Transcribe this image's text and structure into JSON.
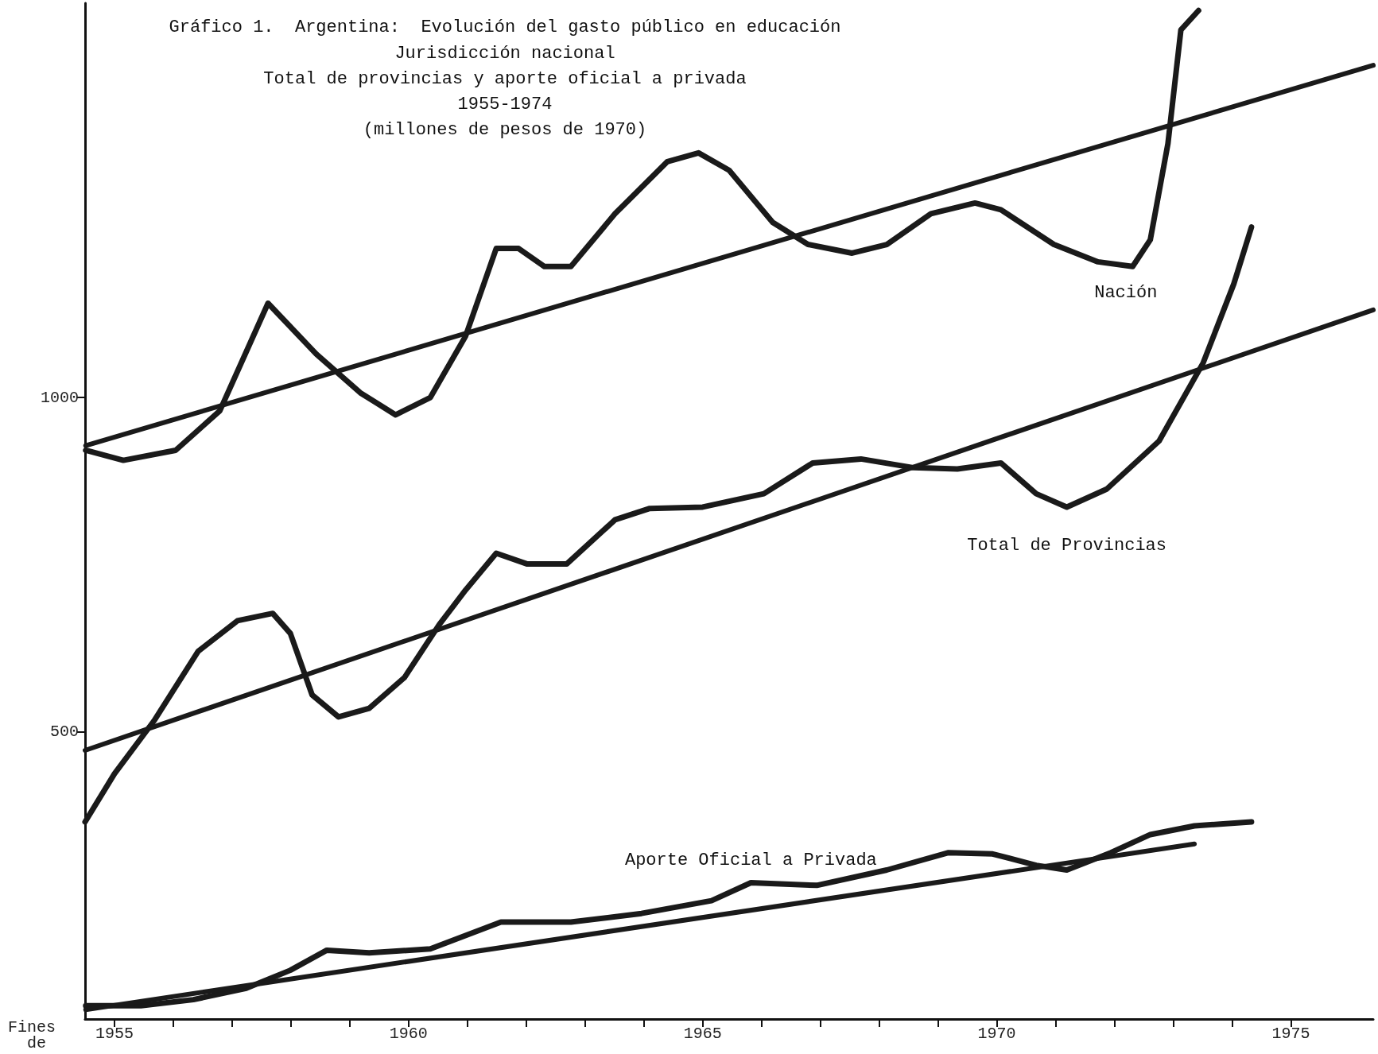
{
  "chart_data": {
    "type": "line",
    "title": "Gráfico 1.  Argentina:  Evolución del gasto público en educación",
    "subtitle": "Jurisdicción nacional\nTotal de provincias y aporte oficial a privada\n1955-1974\n(millones de pesos de 1970)",
    "annotations": [
      "Fines de"
    ],
    "xlim": [
      1954.5,
      1976.4
    ],
    "ylim": [
      70,
      1590
    ],
    "xticks": [
      1955,
      {
        "value": 1956,
        "label": null
      },
      {
        "value": 1957,
        "label": null
      },
      {
        "value": 1958,
        "label": null
      },
      {
        "value": 1959,
        "label": null
      },
      1960,
      {
        "value": 1961,
        "label": null
      },
      {
        "value": 1962,
        "label": null
      },
      {
        "value": 1963,
        "label": null
      },
      {
        "value": 1964,
        "label": null
      },
      1965,
      {
        "value": 1966,
        "label": null
      },
      {
        "value": 1967,
        "label": null
      },
      {
        "value": 1968,
        "label": null
      },
      {
        "value": 1969,
        "label": null
      },
      1970,
      {
        "value": 1971,
        "label": null
      },
      {
        "value": 1972,
        "label": null
      },
      {
        "value": 1973,
        "label": null
      },
      {
        "value": 1974,
        "label": null
      },
      1975
    ],
    "yticks": [
      500,
      1000
    ],
    "grid": false,
    "legend": false,
    "marker": "none",
    "line_style": "solid",
    "series": [
      {
        "name": "Nación",
        "color": "#1a1a1a",
        "x": [
          1954.51,
          1955.15,
          1956.04,
          1956.79,
          1957.61,
          1958.43,
          1959.18,
          1959.78,
          1960.37,
          1960.97,
          1961.49,
          1961.87,
          1962.31,
          1962.76,
          1963.51,
          1964.4,
          1964.93,
          1965.45,
          1966.19,
          1966.79,
          1967.54,
          1968.13,
          1968.88,
          1969.63,
          1970.07,
          1970.97,
          1971.72,
          1972.31,
          1972.61,
          1972.91,
          1973.13,
          1973.43
        ],
        "values": [
          921,
          906,
          921,
          980,
          1141,
          1065,
          1007,
          974,
          1000,
          1092,
          1223,
          1223,
          1196,
          1196,
          1275,
          1353,
          1366,
          1340,
          1262,
          1229,
          1216,
          1229,
          1275,
          1291,
          1281,
          1229,
          1203,
          1196,
          1236,
          1380,
          1550,
          1579
        ]
      },
      {
        "color": "#1a1a1a",
        "x": [
          1954.51,
          1976.4
        ],
        "values": [
          928,
          1497
        ]
      },
      {
        "name": "Total de Provincias",
        "color": "#1a1a1a",
        "x": [
          1954.5,
          1955.0,
          1955.67,
          1956.42,
          1957.09,
          1957.69,
          1957.99,
          1958.36,
          1958.81,
          1959.33,
          1959.93,
          1960.52,
          1960.97,
          1961.49,
          1962.01,
          1962.69,
          1963.51,
          1964.1,
          1965.0,
          1966.04,
          1966.87,
          1967.69,
          1968.58,
          1969.33,
          1970.07,
          1970.67,
          1971.19,
          1971.87,
          1972.76,
          1973.51,
          1974.03,
          1974.33
        ],
        "values": [
          365,
          437,
          516,
          620,
          666,
          677,
          647,
          555,
          522,
          535,
          581,
          660,
          712,
          767,
          751,
          751,
          817,
          834,
          836,
          856,
          902,
          908,
          895,
          893,
          902,
          856,
          836,
          863,
          935,
          1052,
          1170,
          1255
        ]
      },
      {
        "color": "#1a1a1a",
        "x": [
          1954.5,
          1976.4
        ],
        "values": [
          472,
          1131
        ]
      },
      {
        "name": "Aporte Oficial a Privada",
        "color": "#1a1a1a",
        "x": [
          1954.51,
          1955.45,
          1956.34,
          1957.24,
          1957.99,
          1958.61,
          1959.33,
          1960.37,
          1961.57,
          1962.76,
          1963.96,
          1965.15,
          1965.82,
          1966.94,
          1968.13,
          1969.18,
          1969.93,
          1970.67,
          1971.19,
          1971.94,
          1972.61,
          1973.36,
          1974.33
        ],
        "values": [
          90,
          90,
          99,
          116,
          143,
          173,
          169,
          175,
          215,
          215,
          228,
          247,
          274,
          270,
          293,
          319,
          317,
          300,
          293,
          319,
          346,
          359,
          365
        ]
      },
      {
        "color": "#1a1a1a",
        "x": [
          1954.51,
          1973.36
        ],
        "values": [
          84,
          332
        ]
      }
    ]
  }
}
